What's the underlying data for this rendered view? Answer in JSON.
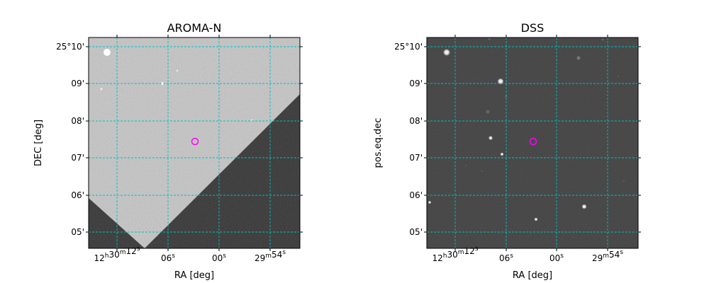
{
  "panels": [
    {
      "title": "AROMA-N",
      "xlabel": "RA [deg]",
      "ylabel": "DEC [deg]",
      "x_ticks": [
        {
          "main": "12",
          "sup1": "h",
          "mid": "30",
          "sup2": "m",
          "end": "12",
          "sup3": "s"
        },
        {
          "main": "06",
          "sup3": "s"
        },
        {
          "main": "00",
          "sup3": "s"
        },
        {
          "main": "29",
          "sup2": "m",
          "end": "54",
          "sup3": "s"
        }
      ],
      "y_ticks": [
        "25°10'",
        "09'",
        "08'",
        "07'",
        "06'",
        "05'"
      ],
      "image_style": "inverted",
      "grid_color": "#00bfbf",
      "marker_color": "#ff00ff"
    },
    {
      "title": "DSS",
      "xlabel": "RA [deg]",
      "ylabel": "pos.eq.dec",
      "x_ticks": [
        {
          "main": "12",
          "sup1": "h",
          "mid": "30",
          "sup2": "m",
          "end": "12",
          "sup3": "s"
        },
        {
          "main": "06",
          "sup3": "s"
        },
        {
          "main": "00",
          "sup3": "s"
        },
        {
          "main": "29",
          "sup2": "m",
          "end": "54",
          "sup3": "s"
        }
      ],
      "y_ticks": [
        "25°10'",
        "09'",
        "08'",
        "07'",
        "06'",
        "05'"
      ],
      "image_style": "dark",
      "grid_color": "#00bfbf",
      "marker_color": "#ff00ff"
    }
  ]
}
